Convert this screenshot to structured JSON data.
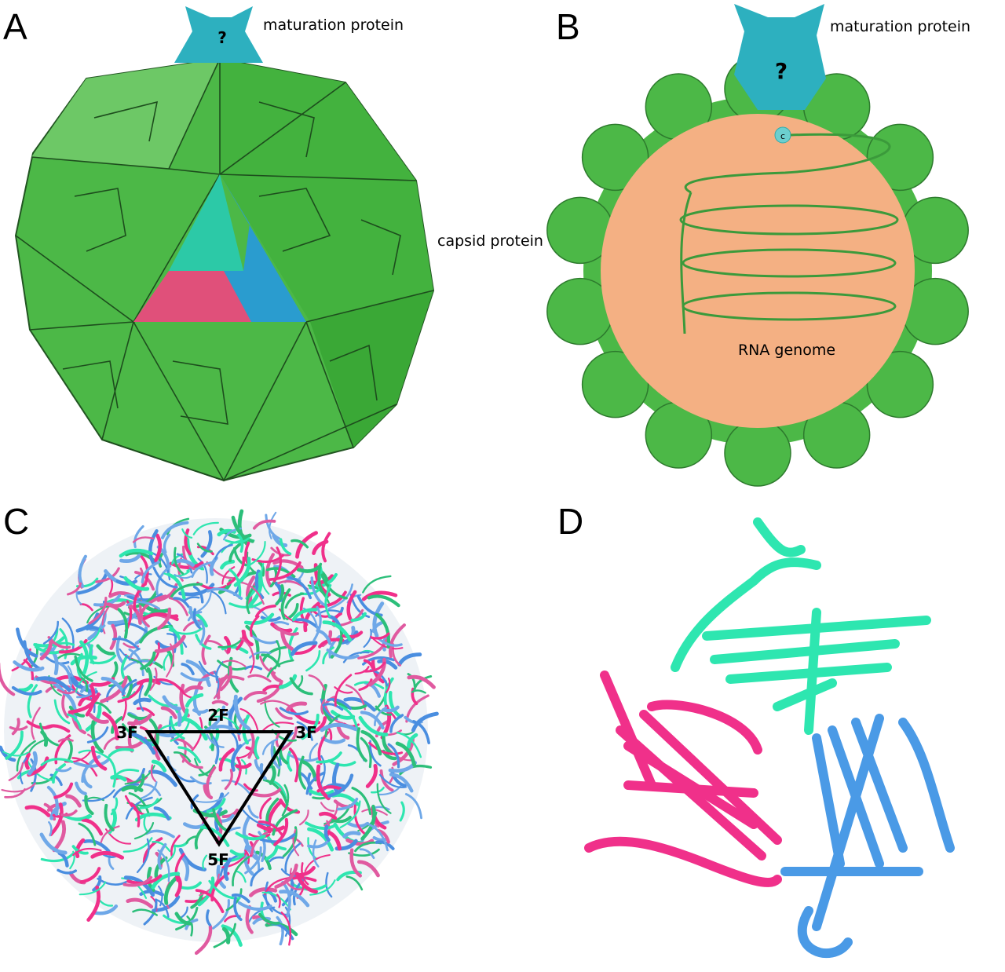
{
  "panels": [
    {
      "label": "A",
      "annotations": [
        "maturation protein",
        "capsid protein"
      ],
      "mark": "?"
    },
    {
      "label": "B",
      "annotations": [
        "maturation protein",
        "RNA genome"
      ],
      "mark": "?",
      "end_mark": "c"
    },
    {
      "label": "C",
      "annotations": [
        "3F",
        "2F",
        "3F",
        "5F"
      ]
    },
    {
      "label": "D"
    }
  ]
}
